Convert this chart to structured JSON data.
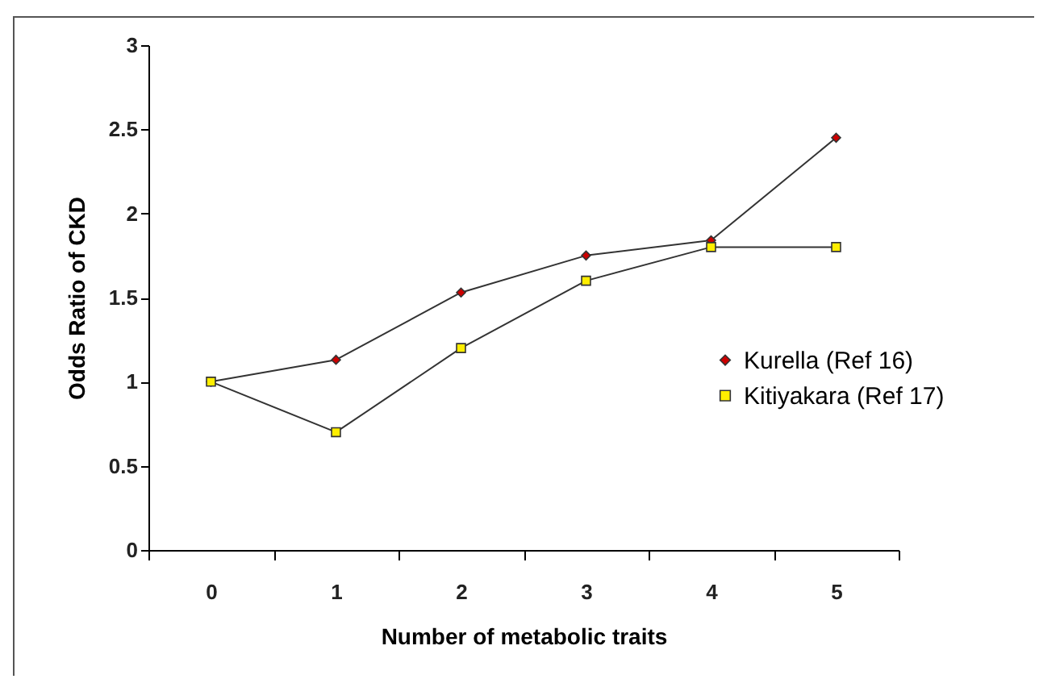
{
  "chart_data": {
    "type": "line",
    "xlabel": "Number of metabolic traits",
    "ylabel": "Odds Ratio of CKD",
    "categories": [
      "0",
      "1",
      "2",
      "3",
      "4",
      "5"
    ],
    "series": [
      {
        "name": "Kurella (Ref 16)",
        "color": "#cc0000",
        "marker": "diamond",
        "values": [
          1,
          1.13,
          1.53,
          1.75,
          1.84,
          2.45
        ]
      },
      {
        "name": "Kitiyakara (Ref 17)",
        "color": "#ffee00",
        "marker": "square",
        "values": [
          1,
          0.7,
          1.2,
          1.6,
          1.8,
          1.8
        ]
      }
    ],
    "ylim": [
      0,
      3
    ],
    "yticks": [
      0,
      0.5,
      1,
      1.5,
      2,
      2.5,
      3
    ],
    "grid": false,
    "legend": "right",
    "line_style": "solid"
  }
}
